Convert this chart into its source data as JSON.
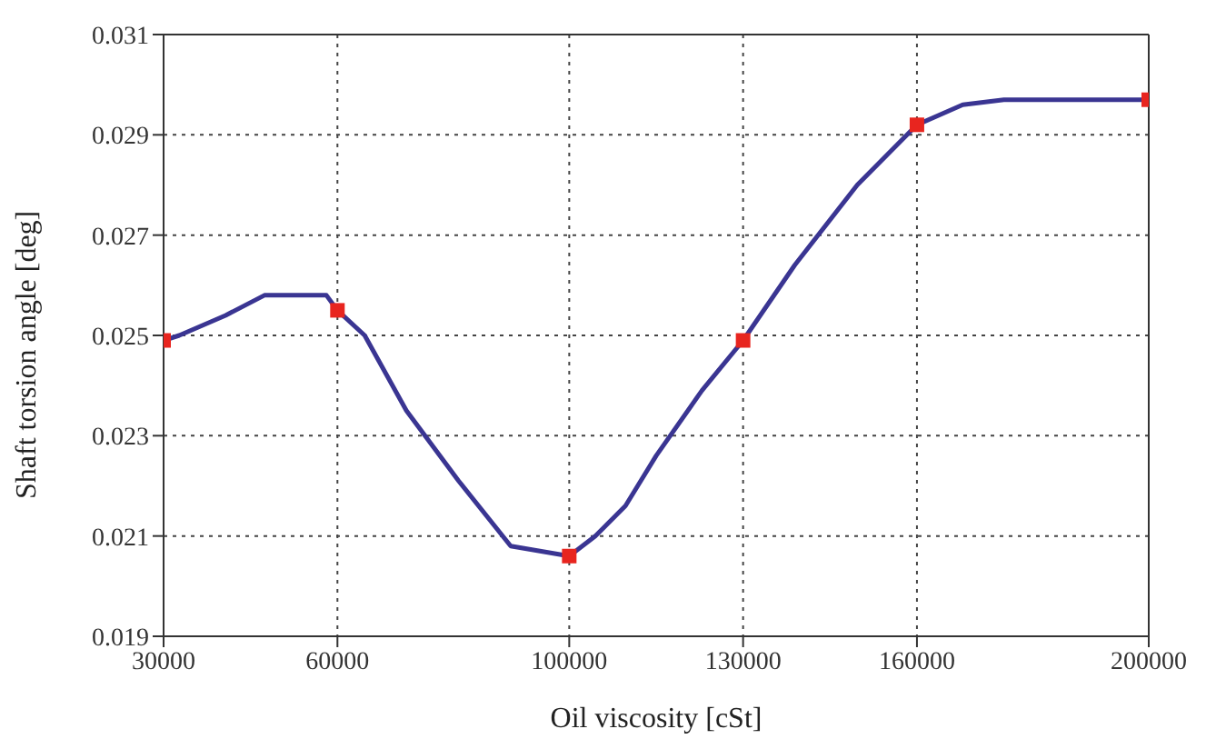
{
  "chart_data": {
    "type": "line",
    "xlabel": "Oil viscosity [cSt]",
    "ylabel": "Shaft torsion angle [deg]",
    "xlim": [
      30000,
      200000
    ],
    "xticks": [
      30000,
      60000,
      100000,
      130000,
      160000,
      200000
    ],
    "ylim": [
      0.019,
      0.031
    ],
    "yticks": [
      0.019,
      0.021,
      0.023,
      0.025,
      0.027,
      0.029,
      0.031
    ],
    "grid": true,
    "series": [
      {
        "color": "#3a3592",
        "marker": "none",
        "x": [
          30000,
          32700,
          40700,
          47400,
          58100,
          60000,
          64700,
          71900,
          80900,
          89900,
          100000,
          104500,
          109700,
          115000,
          122900,
          130000,
          138900,
          149700,
          160000,
          167900,
          175000,
          200000
        ],
        "values": [
          0.0249,
          0.025,
          0.0254,
          0.0258,
          0.0258,
          0.0255,
          0.025,
          0.0235,
          0.0221,
          0.0208,
          0.0206,
          0.021,
          0.0216,
          0.0226,
          0.0239,
          0.0249,
          0.0264,
          0.028,
          0.0292,
          0.0296,
          0.0297,
          0.0297
        ]
      },
      {
        "type": "scatter",
        "color": "#e8251f",
        "marker": "square",
        "x": [
          30000,
          60000,
          100000,
          130000,
          160000,
          200000
        ],
        "values": [
          0.0249,
          0.0255,
          0.0206,
          0.0249,
          0.0292,
          0.0297
        ]
      }
    ]
  }
}
